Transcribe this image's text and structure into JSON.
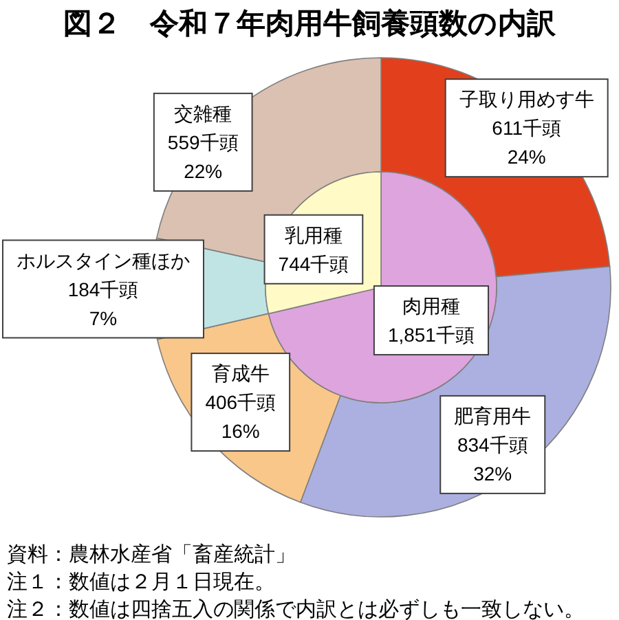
{
  "chart_data": [
    {
      "type": "donut",
      "title": "図２　令和７年肉用牛飼養頭数の内訳",
      "categories": [
        "子取り用めす牛",
        "肥育用牛",
        "育成牛",
        "ホルスタイン種ほか",
        "交雑種"
      ],
      "values": [
        611,
        834,
        406,
        184,
        559
      ],
      "colors": [
        "#e2401c",
        "#abb0e0",
        "#f9c78a",
        "#c0e4e4",
        "#dbc1b1"
      ],
      "value_labels": [
        "611千頭\n24%",
        "834千頭\n32%",
        "406千頭\n16%",
        "184千頭\n7%",
        "559千頭\n22%"
      ],
      "annotations": [
        "資料：農林水産省「畜産統計」",
        "注１：数値は２月１日現在。",
        "注２：数値は四捨五入の関係で内訳とは必ずしも一致しない。"
      ]
    },
    {
      "type": "pie",
      "categories": [
        "肉用種",
        "乳用種"
      ],
      "values": [
        1851,
        744
      ],
      "colors": [
        "#dea4de",
        "#fffac6"
      ],
      "value_labels": [
        "1,851千頭",
        "744千頭"
      ]
    }
  ]
}
